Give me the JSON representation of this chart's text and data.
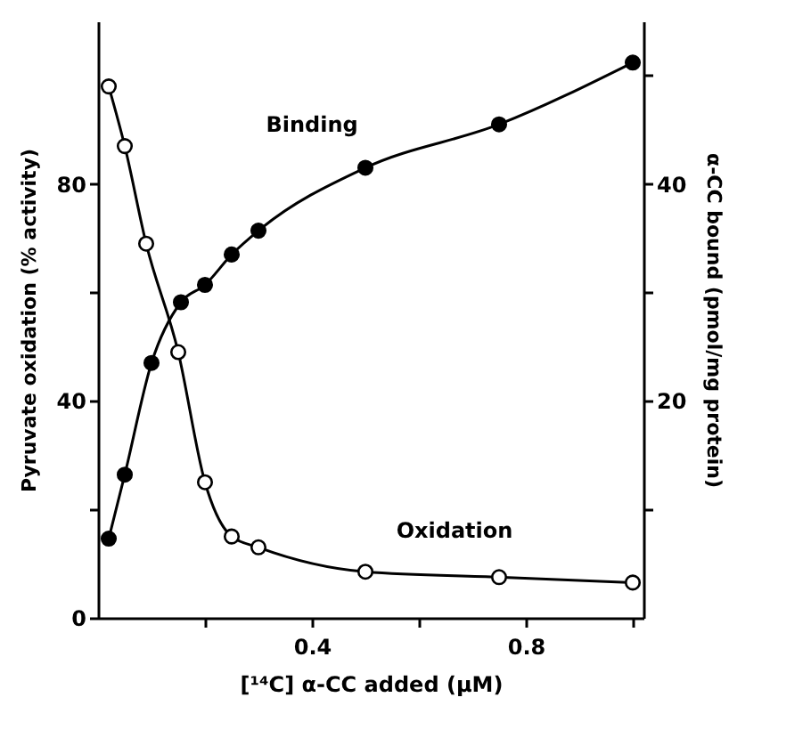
{
  "chart_data": {
    "type": "line",
    "xlabel": "[¹⁴C] α-CC added (μM)",
    "ylabel": "Pyruvate oxidation (% activity)",
    "y2label": "α-CC bound (pmol/mg protein)",
    "x": [
      0.02,
      0.05,
      0.09,
      0.15,
      0.2,
      0.25,
      0.3,
      0.5,
      0.75,
      1.0
    ],
    "series": [
      {
        "name": "Oxidation",
        "color": "#000000",
        "marker": "circle",
        "values": [
          98,
          87,
          69,
          49,
          25,
          15,
          13,
          8.5,
          7.5,
          6.5
        ]
      },
      {
        "name": "Binding",
        "color": "#000000",
        "marker": "circle",
        "axis": "y2",
        "x": [
          0.02,
          0.05,
          0.1,
          0.155,
          0.2,
          0.25,
          0.3,
          0.5,
          0.75,
          1.0
        ],
        "values": [
          7.3,
          13.2,
          23.5,
          29.1,
          30.7,
          33.5,
          35.7,
          41.5,
          45.5,
          51.2
        ]
      }
    ],
    "xlim": [
      0,
      1.02
    ],
    "xticks": [
      {
        "value": 0.2,
        "label": null
      },
      0.4,
      {
        "value": 0.6,
        "label": null
      },
      0.8,
      {
        "value": 1.0,
        "label": null
      }
    ],
    "ylim": [
      0,
      110
    ],
    "yticks": [
      0,
      {
        "value": 20,
        "label": null
      },
      40,
      {
        "value": 60,
        "label": null
      },
      80
    ],
    "y2lim": [
      0,
      55
    ],
    "y2ticks": [
      {
        "value": 10,
        "label": null
      },
      20,
      {
        "value": 30,
        "label": null
      },
      40,
      {
        "value": 50,
        "label": null
      }
    ],
    "grid": false,
    "line_style": "solid"
  }
}
